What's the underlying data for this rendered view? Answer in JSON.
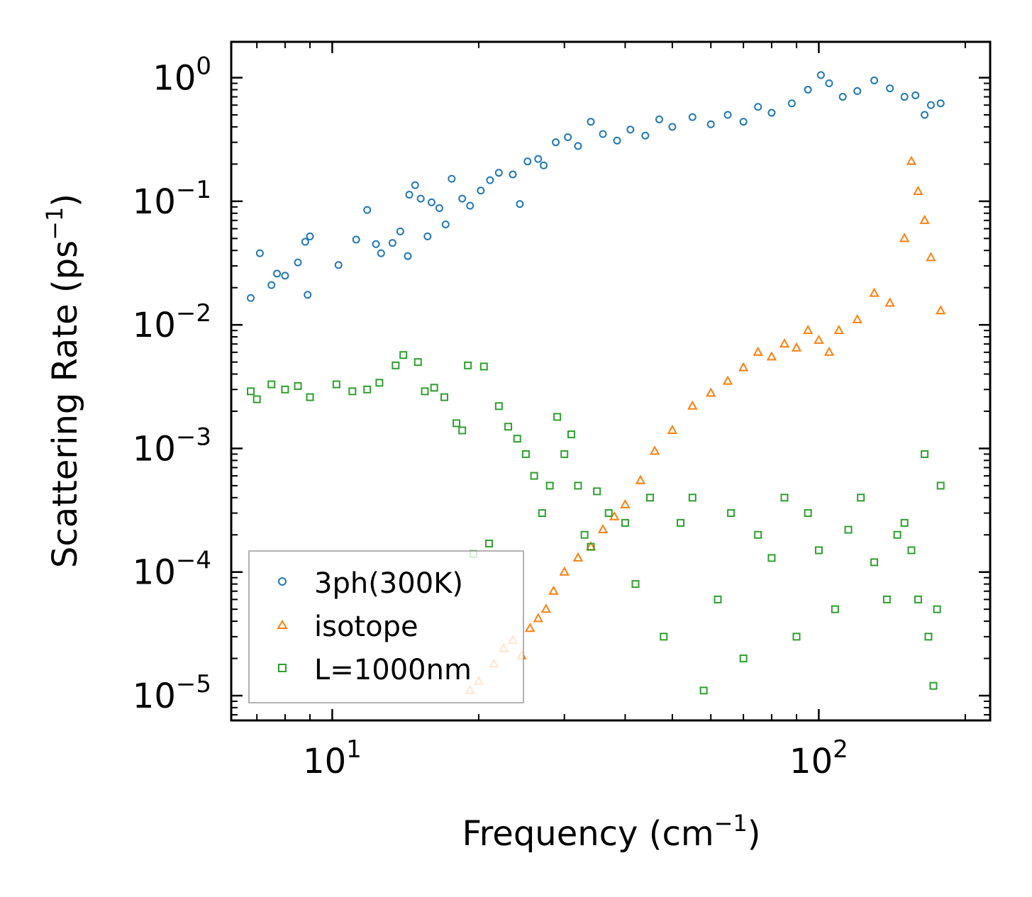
{
  "chart_data": {
    "type": "scatter",
    "title": "",
    "xlabel": "Frequency (cm",
    "xlabel_sup": "−1",
    "xlabel_end": ")",
    "ylabel": "Scattering Rate (ps",
    "ylabel_sup": "−1",
    "ylabel_end": ")",
    "xscale": "log",
    "yscale": "log",
    "xlim": [
      6.2,
      225
    ],
    "ylim": [
      6.3e-06,
      1.95
    ],
    "x_ticks": [
      {
        "value": 10,
        "base": "10",
        "exp": "1"
      },
      {
        "value": 100,
        "base": "10",
        "exp": "2"
      }
    ],
    "y_ticks": [
      {
        "value": 1,
        "base": "10",
        "exp": "0"
      },
      {
        "value": 0.1,
        "base": "10",
        "exp": "−1"
      },
      {
        "value": 0.01,
        "base": "10",
        "exp": "−2"
      },
      {
        "value": 0.001,
        "base": "10",
        "exp": "−3"
      },
      {
        "value": 0.0001,
        "base": "10",
        "exp": "−4"
      },
      {
        "value": 1e-05,
        "base": "10",
        "exp": "−5"
      }
    ],
    "legend_position": "lower-left",
    "series": [
      {
        "name": "3ph(300K)",
        "color": "#1f77b4",
        "marker": "circle",
        "points": [
          [
            6.8,
            0.0165
          ],
          [
            7.1,
            0.038
          ],
          [
            7.5,
            0.021
          ],
          [
            7.7,
            0.026
          ],
          [
            8.0,
            0.025
          ],
          [
            8.5,
            0.032
          ],
          [
            8.8,
            0.047
          ],
          [
            8.9,
            0.0175
          ],
          [
            9.0,
            0.052
          ],
          [
            10.3,
            0.0305
          ],
          [
            11.2,
            0.049
          ],
          [
            11.8,
            0.085
          ],
          [
            12.3,
            0.045
          ],
          [
            12.6,
            0.038
          ],
          [
            13.3,
            0.046
          ],
          [
            13.8,
            0.057
          ],
          [
            14.3,
            0.036
          ],
          [
            14.4,
            0.113
          ],
          [
            14.8,
            0.135
          ],
          [
            15.2,
            0.105
          ],
          [
            15.7,
            0.052
          ],
          [
            16.0,
            0.098
          ],
          [
            16.6,
            0.088
          ],
          [
            17.1,
            0.065
          ],
          [
            17.6,
            0.152
          ],
          [
            18.5,
            0.105
          ],
          [
            19.2,
            0.092
          ],
          [
            20.2,
            0.122
          ],
          [
            21.1,
            0.148
          ],
          [
            22.0,
            0.17
          ],
          [
            23.5,
            0.165
          ],
          [
            24.3,
            0.095
          ],
          [
            25.2,
            0.21
          ],
          [
            26.5,
            0.22
          ],
          [
            27.2,
            0.195
          ],
          [
            28.8,
            0.3
          ],
          [
            30.5,
            0.33
          ],
          [
            32.0,
            0.28
          ],
          [
            34.0,
            0.44
          ],
          [
            36.0,
            0.35
          ],
          [
            38.5,
            0.31
          ],
          [
            41.0,
            0.38
          ],
          [
            44.0,
            0.34
          ],
          [
            47.0,
            0.46
          ],
          [
            50.0,
            0.4
          ],
          [
            55.0,
            0.48
          ],
          [
            60.0,
            0.42
          ],
          [
            65.0,
            0.5
          ],
          [
            70.0,
            0.44
          ],
          [
            75.0,
            0.58
          ],
          [
            80.0,
            0.52
          ],
          [
            88.0,
            0.62
          ],
          [
            95.0,
            0.8
          ],
          [
            101.0,
            1.05
          ],
          [
            105.0,
            0.9
          ],
          [
            112.0,
            0.7
          ],
          [
            120.0,
            0.78
          ],
          [
            130.0,
            0.95
          ],
          [
            140.0,
            0.82
          ],
          [
            150.0,
            0.7
          ],
          [
            158.0,
            0.72
          ],
          [
            165.0,
            0.5
          ],
          [
            170.0,
            0.6
          ],
          [
            178.0,
            0.62
          ]
        ]
      },
      {
        "name": "isotope",
        "color": "#ff7f0e",
        "marker": "triangle",
        "points": [
          [
            19.2,
            1.1e-05
          ],
          [
            20.0,
            1.3e-05
          ],
          [
            21.5,
            1.8e-05
          ],
          [
            22.5,
            2.4e-05
          ],
          [
            23.5,
            2.8e-05
          ],
          [
            24.5,
            2.1e-05
          ],
          [
            25.5,
            3.5e-05
          ],
          [
            26.5,
            4.2e-05
          ],
          [
            27.5,
            5e-05
          ],
          [
            28.5,
            7e-05
          ],
          [
            30.0,
            0.0001
          ],
          [
            32.0,
            0.00013
          ],
          [
            34.0,
            0.00016
          ],
          [
            36.0,
            0.00022
          ],
          [
            38.0,
            0.00028
          ],
          [
            40.0,
            0.00035
          ],
          [
            43.0,
            0.00055
          ],
          [
            46.0,
            0.00095
          ],
          [
            50.0,
            0.0014
          ],
          [
            55.0,
            0.0022
          ],
          [
            60.0,
            0.0028
          ],
          [
            65.0,
            0.0035
          ],
          [
            70.0,
            0.0045
          ],
          [
            75.0,
            0.006
          ],
          [
            80.0,
            0.0055
          ],
          [
            85.0,
            0.007
          ],
          [
            90.0,
            0.0065
          ],
          [
            95.0,
            0.009
          ],
          [
            100.0,
            0.0075
          ],
          [
            105.0,
            0.006
          ],
          [
            110.0,
            0.009
          ],
          [
            120.0,
            0.011
          ],
          [
            130.0,
            0.018
          ],
          [
            140.0,
            0.015
          ],
          [
            150.0,
            0.05
          ],
          [
            155.0,
            0.21
          ],
          [
            160.0,
            0.12
          ],
          [
            165.0,
            0.07
          ],
          [
            170.0,
            0.035
          ],
          [
            178.0,
            0.013
          ]
        ]
      },
      {
        "name": "L=1000nm",
        "color": "#2ca02c",
        "marker": "square",
        "points": [
          [
            6.8,
            0.0029
          ],
          [
            7.0,
            0.0025
          ],
          [
            7.5,
            0.0033
          ],
          [
            8.0,
            0.003
          ],
          [
            8.5,
            0.0032
          ],
          [
            9.0,
            0.0026
          ],
          [
            10.2,
            0.0033
          ],
          [
            11.0,
            0.0029
          ],
          [
            11.8,
            0.003
          ],
          [
            12.5,
            0.0034
          ],
          [
            13.5,
            0.0047
          ],
          [
            14.0,
            0.0057
          ],
          [
            15.0,
            0.005
          ],
          [
            15.5,
            0.0029
          ],
          [
            16.2,
            0.0031
          ],
          [
            17.0,
            0.0026
          ],
          [
            18.0,
            0.0016
          ],
          [
            18.5,
            0.0014
          ],
          [
            19.0,
            0.0047
          ],
          [
            19.5,
            0.00014
          ],
          [
            20.5,
            0.0046
          ],
          [
            21.0,
            0.00017
          ],
          [
            22.0,
            0.0022
          ],
          [
            23.0,
            0.0015
          ],
          [
            24.0,
            0.0012
          ],
          [
            25.0,
            0.0009
          ],
          [
            26.0,
            0.0006
          ],
          [
            27.0,
            0.0003
          ],
          [
            28.0,
            0.0005
          ],
          [
            29.0,
            0.0018
          ],
          [
            30.0,
            0.0009
          ],
          [
            31.0,
            0.0013
          ],
          [
            32.0,
            0.0005
          ],
          [
            33.0,
            0.0002
          ],
          [
            34.0,
            0.00016
          ],
          [
            35.0,
            0.00045
          ],
          [
            37.0,
            0.0003
          ],
          [
            40.0,
            0.00025
          ],
          [
            42.0,
            8e-05
          ],
          [
            45.0,
            0.0004
          ],
          [
            48.0,
            3e-05
          ],
          [
            52.0,
            0.00025
          ],
          [
            55.0,
            0.0004
          ],
          [
            58.0,
            1.1e-05
          ],
          [
            62.0,
            6e-05
          ],
          [
            66.0,
            0.0003
          ],
          [
            70.0,
            2e-05
          ],
          [
            75.0,
            0.0002
          ],
          [
            80.0,
            0.00013
          ],
          [
            85.0,
            0.0004
          ],
          [
            90.0,
            3e-05
          ],
          [
            95.0,
            0.0003
          ],
          [
            100.0,
            0.00015
          ],
          [
            108.0,
            5e-05
          ],
          [
            115.0,
            0.00022
          ],
          [
            122.0,
            0.0004
          ],
          [
            130.0,
            0.00012
          ],
          [
            138.0,
            6e-05
          ],
          [
            145.0,
            0.0002
          ],
          [
            150.0,
            0.00025
          ],
          [
            155.0,
            0.00015
          ],
          [
            160.0,
            6e-05
          ],
          [
            165.0,
            0.0009
          ],
          [
            168.0,
            3e-05
          ],
          [
            172.0,
            1.2e-05
          ],
          [
            175.0,
            5e-05
          ],
          [
            178.0,
            0.0005
          ]
        ]
      }
    ]
  }
}
